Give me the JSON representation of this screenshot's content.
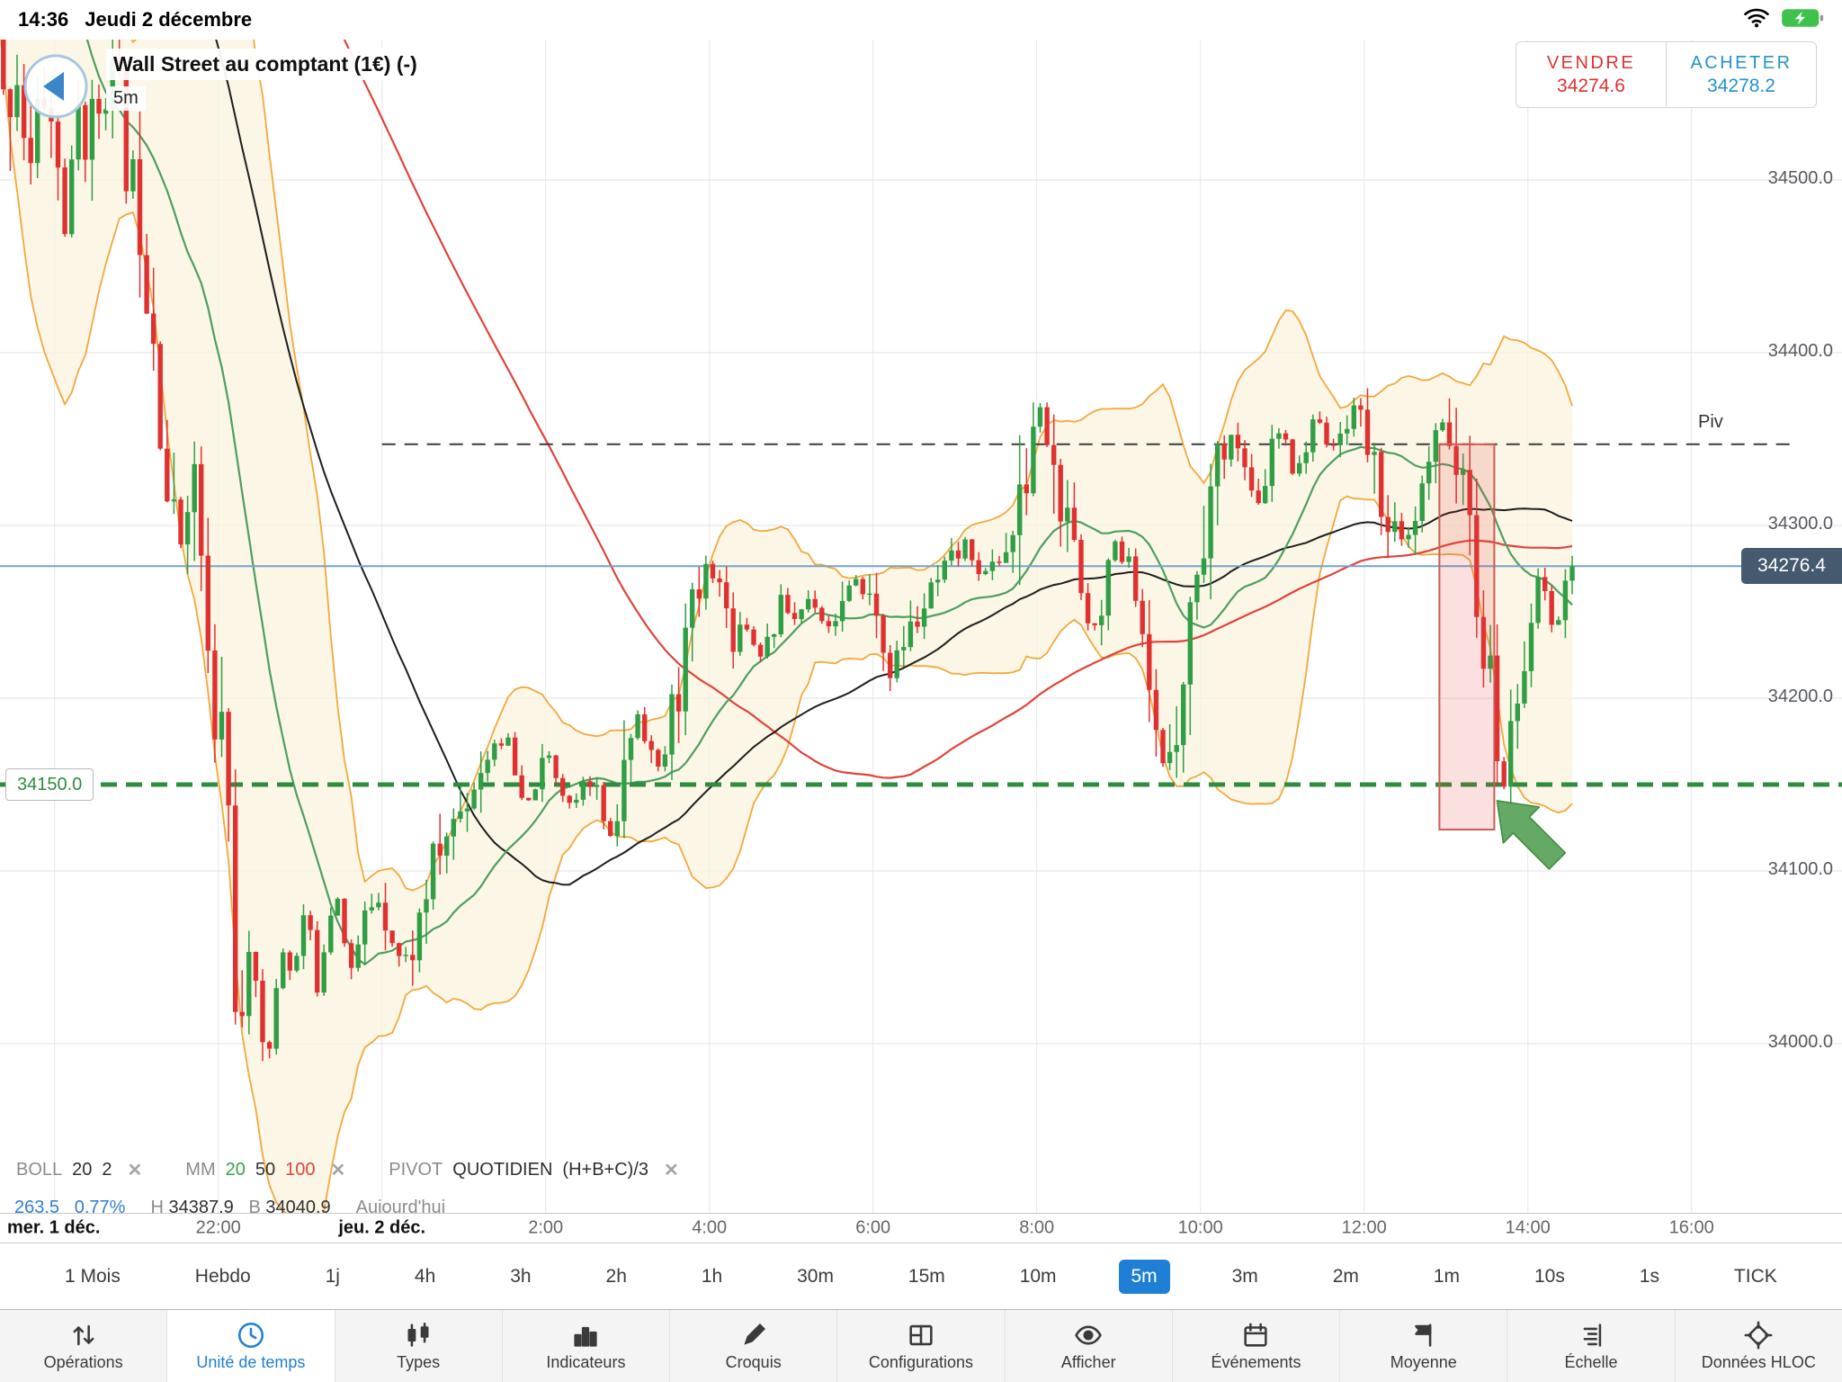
{
  "status_bar": {
    "time": "14:36",
    "date": "Jeudi 2 décembre"
  },
  "quote_panel": {
    "sell_label": "VENDRE",
    "sell_price": "34274.6",
    "buy_label": "ACHETER",
    "buy_price": "34278.2"
  },
  "instrument": {
    "name": "Wall Street au comptant (1€) (-)",
    "timeframe": "5m"
  },
  "chart": {
    "price_labels": [
      {
        "text": "34500.0",
        "value": 34500
      },
      {
        "text": "34400.0",
        "value": 34400
      },
      {
        "text": "34300.0",
        "value": 34300
      },
      {
        "text": "34200.0",
        "value": 34200
      },
      {
        "text": "34100.0",
        "value": 34100
      },
      {
        "text": "34000.0",
        "value": 34000
      }
    ],
    "time_labels": [
      {
        "text": "mer. 1 déc.",
        "t": -4,
        "strong": true,
        "edge": true
      },
      {
        "text": "22:00",
        "t": -2
      },
      {
        "text": "jeu. 2 déc.",
        "t": 0,
        "strong": true
      },
      {
        "text": "2:00",
        "t": 2
      },
      {
        "text": "4:00",
        "t": 4
      },
      {
        "text": "6:00",
        "t": 6
      },
      {
        "text": "8:00",
        "t": 8
      },
      {
        "text": "10:00",
        "t": 10
      },
      {
        "text": "12:00",
        "t": 12
      },
      {
        "text": "14:00",
        "t": 14
      },
      {
        "text": "16:00",
        "t": 16
      }
    ],
    "current_price_label": "34276.4",
    "alert_label": "34150.0",
    "pivot_label": "Piv"
  },
  "legend": {
    "close_symbol": "✕",
    "groups": [
      {
        "name": "BOLL",
        "values": [
          {
            "text": "20"
          },
          {
            "text": "2"
          }
        ]
      },
      {
        "name": "MM",
        "values": [
          {
            "text": "20",
            "color": "#3f9e4f"
          },
          {
            "text": "50",
            "color": "#333333"
          },
          {
            "text": "100",
            "color": "#e0433c"
          }
        ]
      },
      {
        "name": "PIVOT",
        "values": [
          {
            "text": "QUOTIDIEN"
          },
          {
            "text": "(H+B+C)/3"
          }
        ]
      }
    ]
  },
  "stats": {
    "change": "263.5",
    "change_pct": "0.77%",
    "high_label": "H",
    "high_value": "34387.9",
    "low_label": "B",
    "low_value": "34040.9",
    "session": "Aujourd'hui"
  },
  "timeframes": {
    "options": [
      "1 Mois",
      "Hebdo",
      "1j",
      "4h",
      "3h",
      "2h",
      "1h",
      "30m",
      "15m",
      "10m",
      "5m",
      "3m",
      "2m",
      "1m",
      "10s",
      "1s",
      "TICK"
    ],
    "selected": "5m"
  },
  "toolbar": {
    "items": [
      {
        "label": "Opérations",
        "icon": "sort-arrows"
      },
      {
        "label": "Unité de temps",
        "icon": "clock",
        "selected": true
      },
      {
        "label": "Types",
        "icon": "candles"
      },
      {
        "label": "Indicateurs",
        "icon": "bar-chart"
      },
      {
        "label": "Croquis",
        "icon": "pencil"
      },
      {
        "label": "Configurations",
        "icon": "layout"
      },
      {
        "label": "Afficher",
        "icon": "eye"
      },
      {
        "label": "Événements",
        "icon": "calendar"
      },
      {
        "label": "Moyenne",
        "icon": "flag"
      },
      {
        "label": "Échelle",
        "icon": "scale"
      },
      {
        "label": "Données HLOC",
        "icon": "hloc"
      }
    ]
  },
  "colors": {
    "up": "#2f9e44",
    "down": "#e03131",
    "boll": "#f2a83c",
    "boll_fill": "#faf3dd",
    "mm20": "#4f9e5f",
    "mm50": "#1d1d1d",
    "mm100": "#e0433c",
    "pivot_line": "#3c3c3c",
    "alert_line": "#2f8b3f",
    "price_line": "#76a3c8",
    "badge_bg": "#455a6f",
    "sell": "#e03131",
    "buy": "#2492cc",
    "grid_h": "#e2e2e6",
    "grid_v": "#e8e8ea",
    "annotation_fill": "rgba(225,70,60,0.16)",
    "annotation_stroke": "#cf5a52",
    "arrow": "#57a257"
  },
  "chart_data": {
    "type": "candlestick",
    "instrument": "Wall Street au comptant (1€)",
    "interval": "5m",
    "visible_time_range_hours": [
      -4.67,
      17.8
    ],
    "price_axis_range": [
      33900,
      34610
    ],
    "last_price": 34276.4,
    "session_high": 34387.9,
    "session_low": 34040.9,
    "daily_change": 263.5,
    "daily_change_pct": 0.77,
    "pivot_value": 34347,
    "alert_value": 34150,
    "bollinger": {
      "period": 20,
      "deviations": 2
    },
    "moving_averages": [
      20,
      50,
      100
    ],
    "history_level": 34900,
    "annotation_box": {
      "t_start": 12.92,
      "t_end": 13.59,
      "price_top": 34347,
      "price_bottom": 34124
    },
    "anchors": [
      [
        -4.67,
        34540
      ],
      [
        -4.5,
        34565
      ],
      [
        -4.35,
        34500
      ],
      [
        -4.2,
        34555
      ],
      [
        -4.05,
        34525
      ],
      [
        -3.9,
        34468
      ],
      [
        -3.75,
        34540
      ],
      [
        -3.6,
        34528
      ],
      [
        -3.45,
        34552
      ],
      [
        -3.3,
        34560
      ],
      [
        -3.15,
        34508
      ],
      [
        -3.0,
        34478
      ],
      [
        -2.9,
        34440
      ],
      [
        -2.8,
        34408
      ],
      [
        -2.7,
        34330
      ],
      [
        -2.6,
        34300
      ],
      [
        -2.5,
        34292
      ],
      [
        -2.4,
        34330
      ],
      [
        -2.3,
        34318
      ],
      [
        -2.2,
        34250
      ],
      [
        -2.1,
        34160
      ],
      [
        -2.0,
        34196
      ],
      [
        -1.93,
        34148
      ],
      [
        -1.86,
        34060
      ],
      [
        -1.8,
        34008
      ],
      [
        -1.73,
        33998
      ],
      [
        -1.62,
        34058
      ],
      [
        -1.52,
        34012
      ],
      [
        -1.42,
        33992
      ],
      [
        -1.32,
        34040
      ],
      [
        -1.22,
        34066
      ],
      [
        -1.12,
        34034
      ],
      [
        -1.02,
        34078
      ],
      [
        -0.92,
        34058
      ],
      [
        -0.82,
        34030
      ],
      [
        -0.72,
        34068
      ],
      [
        -0.6,
        34090
      ],
      [
        -0.5,
        34062
      ],
      [
        -0.4,
        34040
      ],
      [
        -0.25,
        34074
      ],
      [
        -0.1,
        34086
      ],
      [
        0.05,
        34068
      ],
      [
        0.2,
        34046
      ],
      [
        0.35,
        34056
      ],
      [
        0.5,
        34090
      ],
      [
        0.65,
        34110
      ],
      [
        0.8,
        34126
      ],
      [
        1.0,
        34142
      ],
      [
        1.2,
        34164
      ],
      [
        1.4,
        34180
      ],
      [
        1.55,
        34160
      ],
      [
        1.7,
        34132
      ],
      [
        1.85,
        34154
      ],
      [
        2.0,
        34166
      ],
      [
        2.15,
        34150
      ],
      [
        2.3,
        34136
      ],
      [
        2.45,
        34160
      ],
      [
        2.6,
        34142
      ],
      [
        2.75,
        34114
      ],
      [
        2.9,
        34150
      ],
      [
        3.05,
        34196
      ],
      [
        3.2,
        34176
      ],
      [
        3.35,
        34154
      ],
      [
        3.5,
        34190
      ],
      [
        3.65,
        34228
      ],
      [
        3.8,
        34254
      ],
      [
        3.95,
        34280
      ],
      [
        4.1,
        34262
      ],
      [
        4.25,
        34236
      ],
      [
        4.4,
        34246
      ],
      [
        4.55,
        34224
      ],
      [
        4.7,
        34236
      ],
      [
        4.85,
        34256
      ],
      [
        5.0,
        34246
      ],
      [
        5.2,
        34260
      ],
      [
        5.4,
        34240
      ],
      [
        5.6,
        34256
      ],
      [
        5.8,
        34270
      ],
      [
        6.0,
        34246
      ],
      [
        6.15,
        34214
      ],
      [
        6.3,
        34230
      ],
      [
        6.5,
        34246
      ],
      [
        6.7,
        34262
      ],
      [
        6.9,
        34276
      ],
      [
        7.1,
        34290
      ],
      [
        7.3,
        34270
      ],
      [
        7.5,
        34282
      ],
      [
        7.7,
        34296
      ],
      [
        7.85,
        34330
      ],
      [
        7.95,
        34372
      ],
      [
        8.05,
        34362
      ],
      [
        8.15,
        34330
      ],
      [
        8.3,
        34300
      ],
      [
        8.45,
        34270
      ],
      [
        8.6,
        34240
      ],
      [
        8.75,
        34256
      ],
      [
        8.9,
        34296
      ],
      [
        9.05,
        34272
      ],
      [
        9.2,
        34226
      ],
      [
        9.35,
        34186
      ],
      [
        9.5,
        34160
      ],
      [
        9.6,
        34176
      ],
      [
        9.75,
        34220
      ],
      [
        9.9,
        34270
      ],
      [
        10.05,
        34312
      ],
      [
        10.2,
        34342
      ],
      [
        10.35,
        34356
      ],
      [
        10.5,
        34330
      ],
      [
        10.65,
        34306
      ],
      [
        10.8,
        34340
      ],
      [
        10.95,
        34356
      ],
      [
        11.1,
        34330
      ],
      [
        11.25,
        34346
      ],
      [
        11.4,
        34366
      ],
      [
        11.55,
        34340
      ],
      [
        11.7,
        34356
      ],
      [
        11.85,
        34372
      ],
      [
        12.0,
        34346
      ],
      [
        12.15,
        34320
      ],
      [
        12.3,
        34300
      ],
      [
        12.45,
        34286
      ],
      [
        12.6,
        34302
      ],
      [
        12.75,
        34332
      ],
      [
        12.9,
        34360
      ],
      [
        13.0,
        34354
      ],
      [
        13.1,
        34334
      ],
      [
        13.2,
        34304
      ],
      [
        13.3,
        34270
      ],
      [
        13.4,
        34240
      ],
      [
        13.5,
        34200
      ],
      [
        13.6,
        34162
      ],
      [
        13.68,
        34148
      ],
      [
        13.78,
        34186
      ],
      [
        13.9,
        34230
      ],
      [
        14.0,
        34256
      ],
      [
        14.1,
        34276
      ],
      [
        14.2,
        34250
      ],
      [
        14.3,
        34236
      ],
      [
        14.4,
        34264
      ],
      [
        14.52,
        34276.4
      ]
    ]
  }
}
